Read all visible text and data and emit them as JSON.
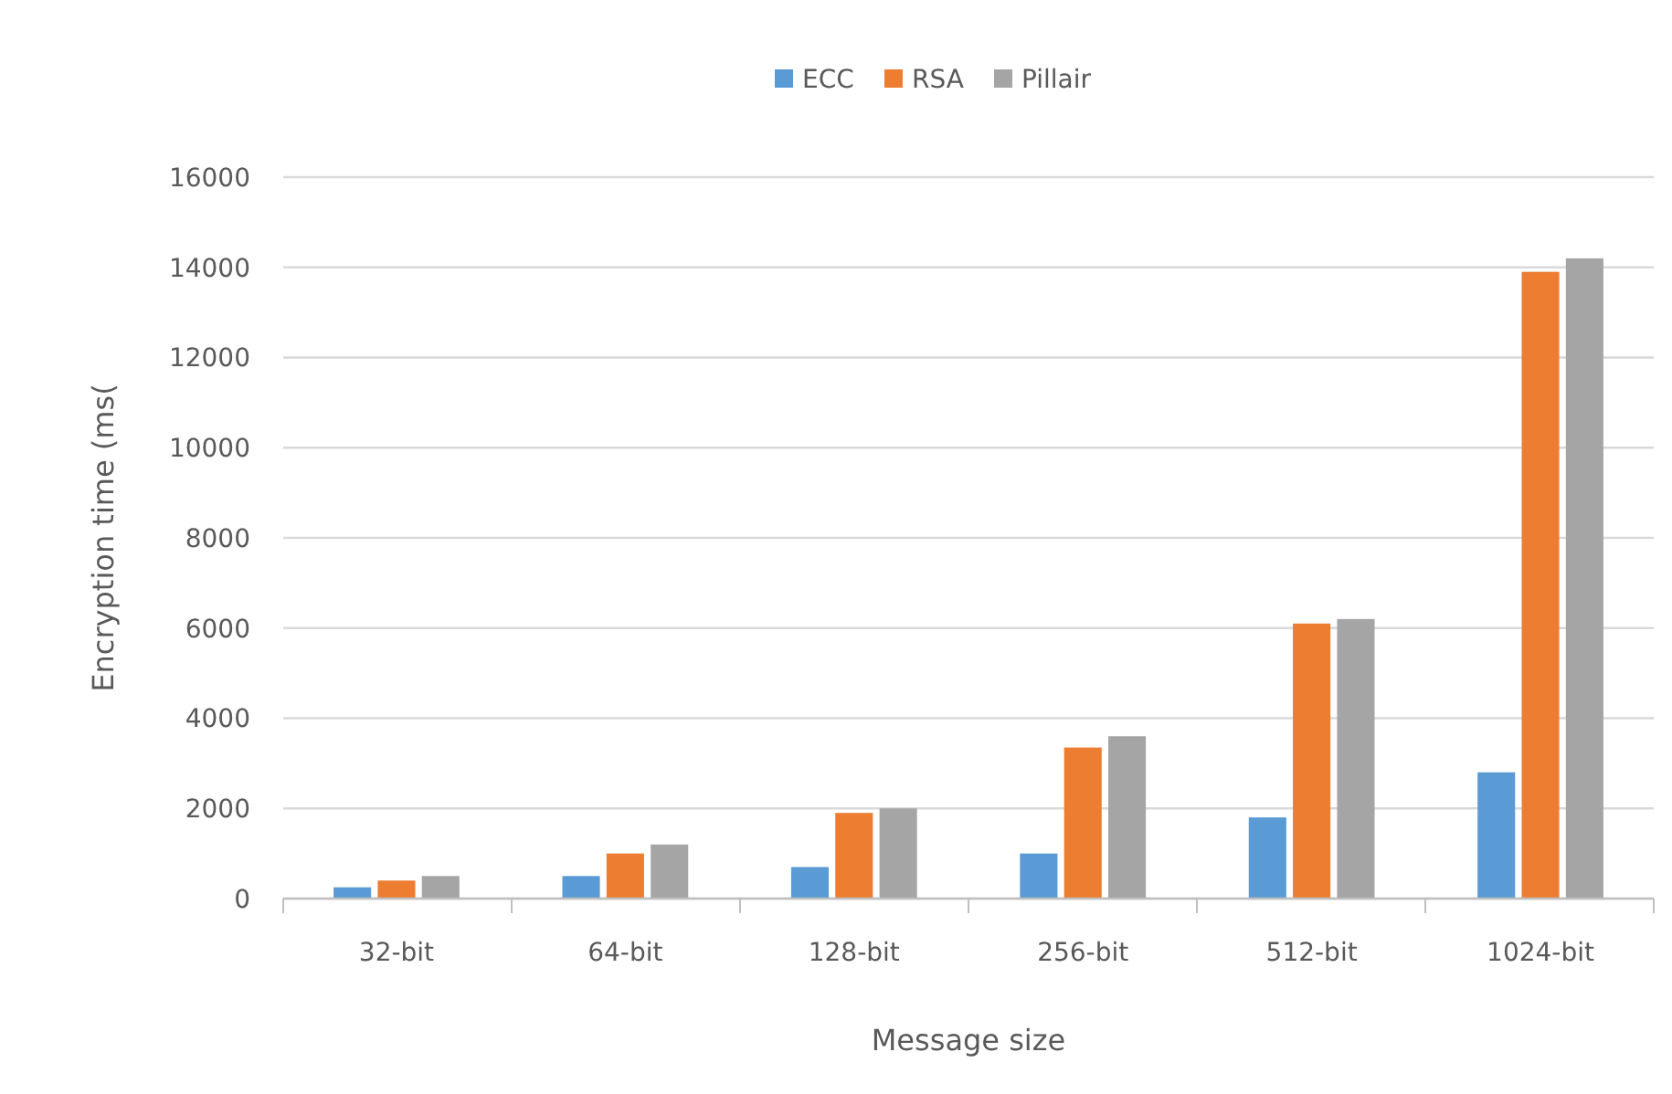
{
  "chart_data": {
    "type": "bar",
    "xlabel": "Message size",
    "ylabel": "Encryption time (ms(",
    "categories": [
      "32-bit",
      "64-bit",
      "128-bit",
      "256-bit",
      "512-bit",
      "1024-bit"
    ],
    "series": [
      {
        "name": "ECC",
        "color": "#5b9bd5",
        "values": [
          250,
          500,
          700,
          1000,
          1800,
          2800
        ]
      },
      {
        "name": "RSA",
        "color": "#ed7d31",
        "values": [
          400,
          1000,
          1900,
          3350,
          6100,
          13900
        ]
      },
      {
        "name": "Pillair",
        "color": "#a5a5a5",
        "values": [
          500,
          1200,
          2000,
          3600,
          6200,
          14200
        ]
      }
    ],
    "ylim": [
      0,
      16000
    ],
    "yticks": [
      0,
      2000,
      4000,
      6000,
      8000,
      10000,
      12000,
      14000,
      16000
    ],
    "grid": "y",
    "legend": "top"
  }
}
